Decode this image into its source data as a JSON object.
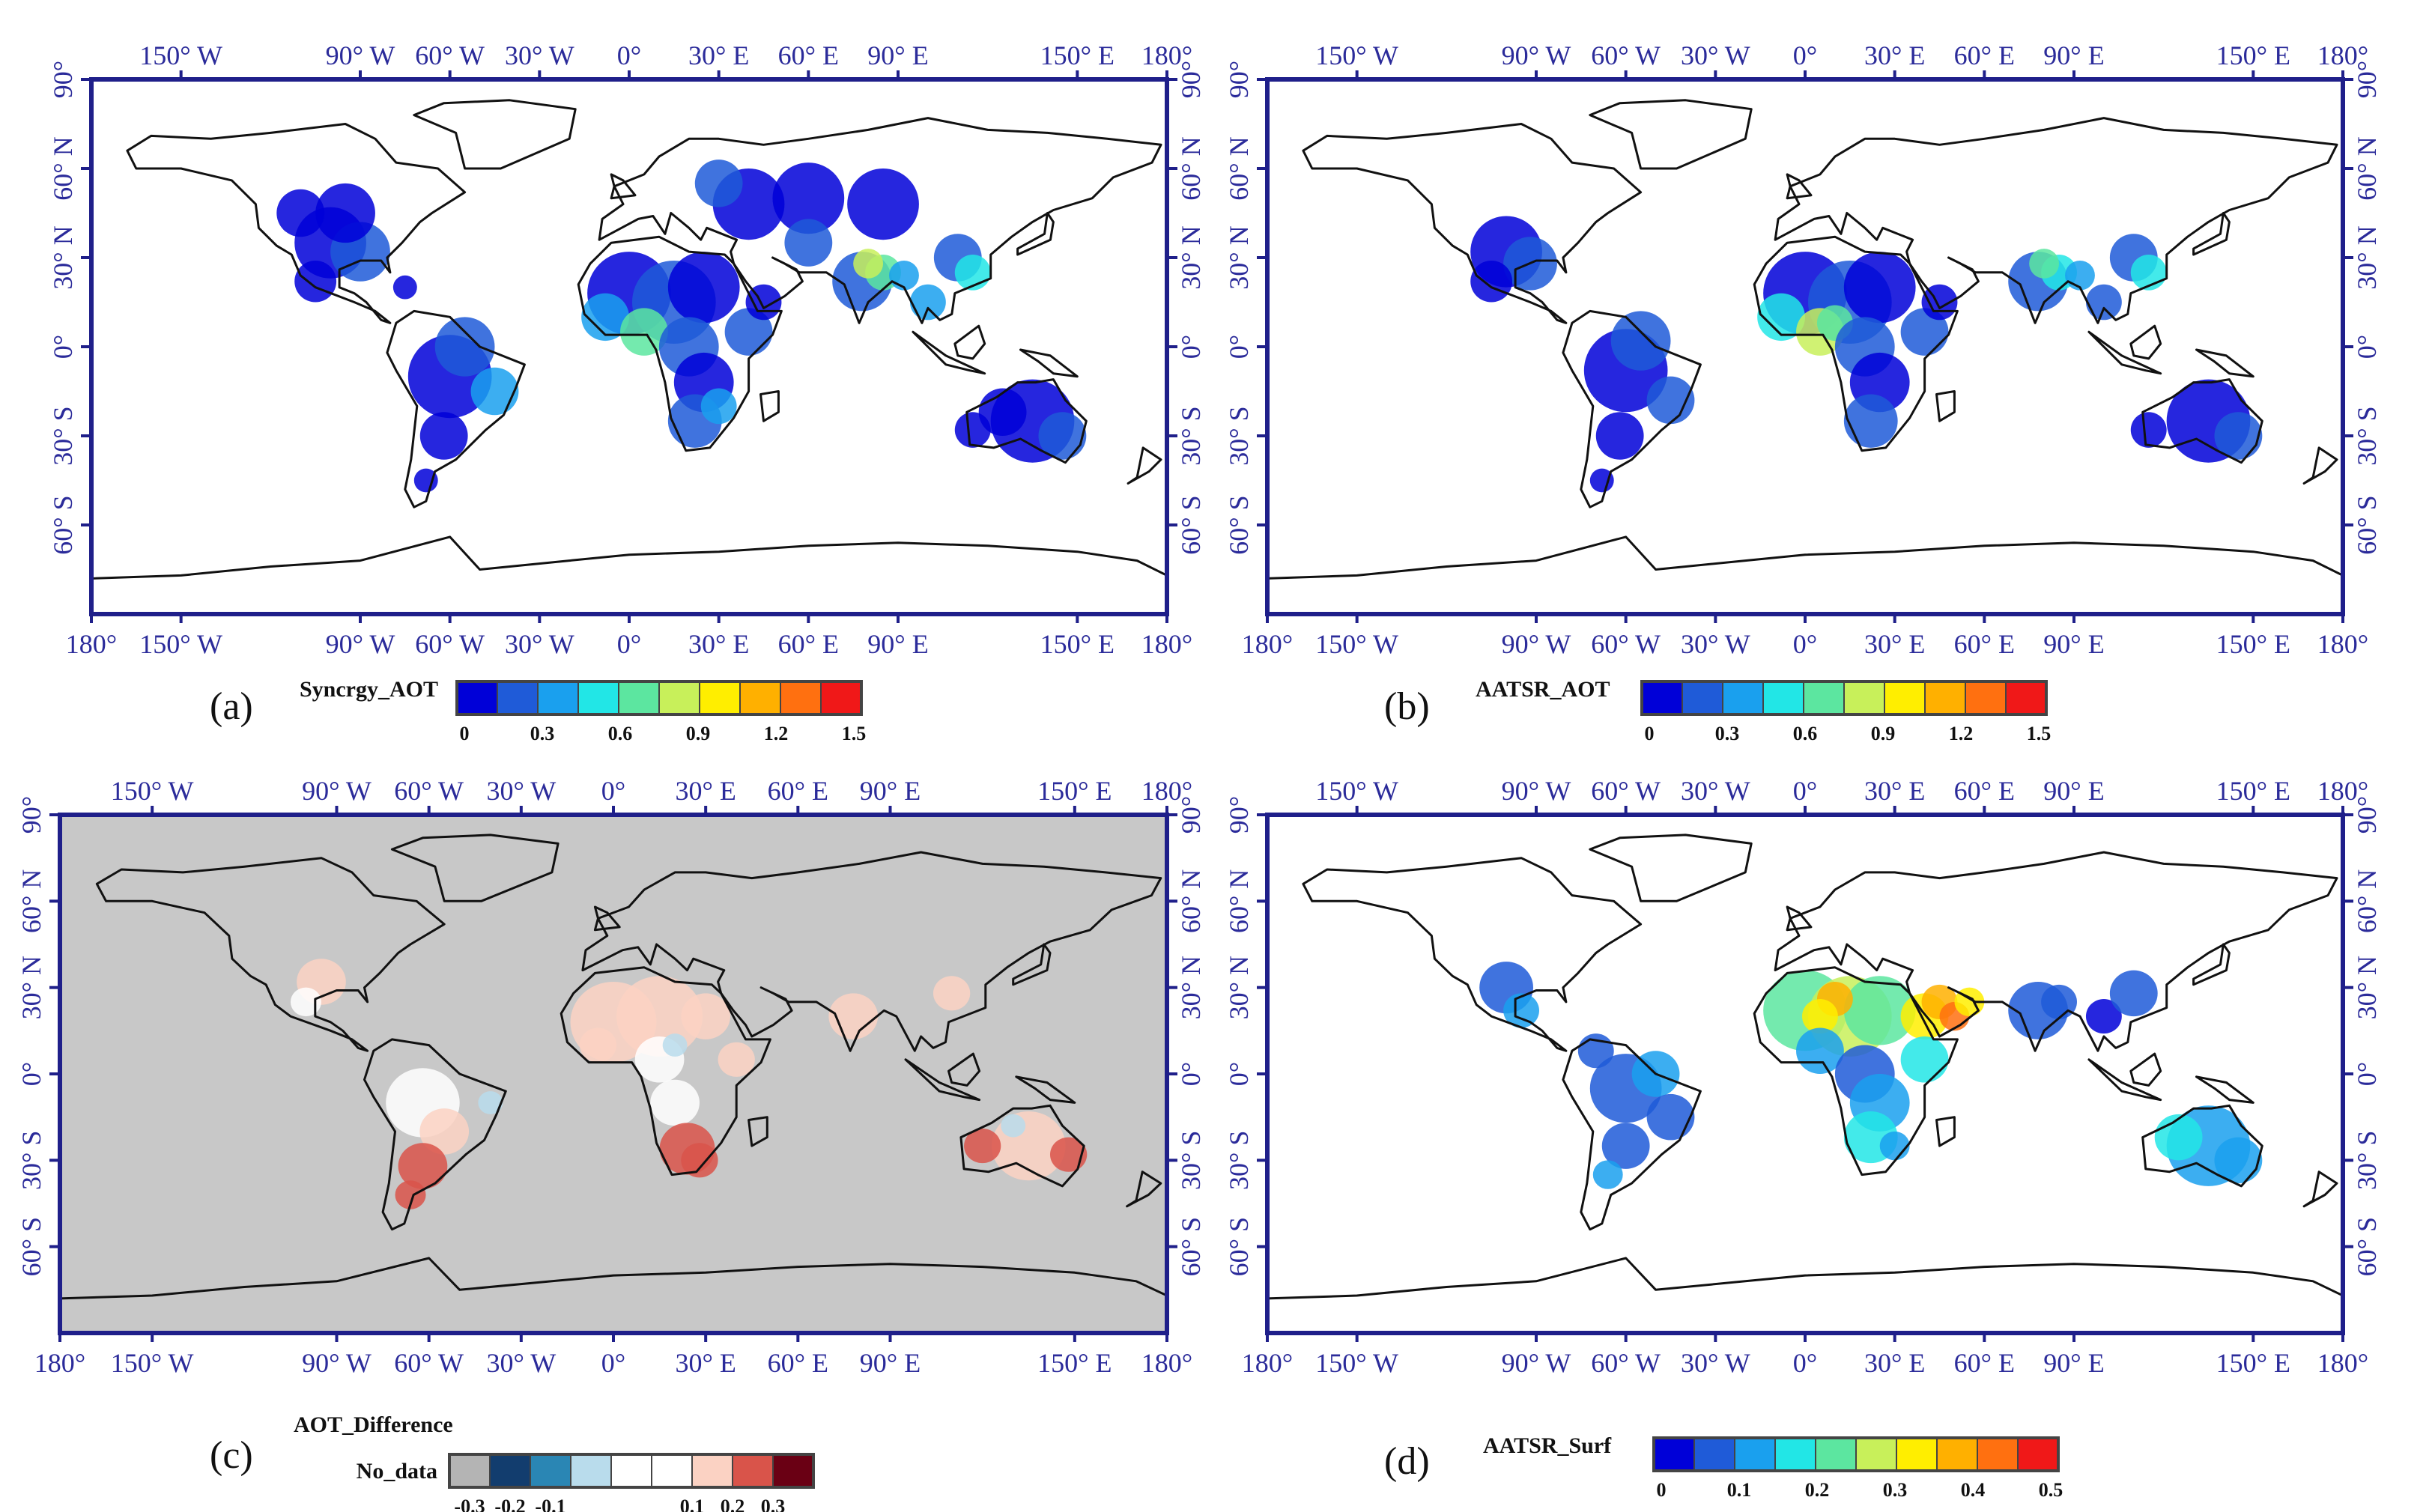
{
  "figure": {
    "panels": [
      {
        "letter": "(a)",
        "colorbar_title": "Syncrgy_AOT",
        "background": "#ffffff",
        "colormap": [
          "#0000d8",
          "#1f5bd8",
          "#1aa0ee",
          "#22e6e6",
          "#5ce6a0",
          "#c8f05a",
          "#ffee00",
          "#ffb000",
          "#ff7010",
          "#f01818"
        ],
        "colorbar_ticks": [
          "0",
          "0.3",
          "0.6",
          "0.9",
          "1.2",
          "1.5"
        ],
        "value_range": [
          0,
          1.5
        ]
      },
      {
        "letter": "(b)",
        "colorbar_title": "AATSR_AOT",
        "background": "#ffffff",
        "colormap": [
          "#0000d8",
          "#1f5bd8",
          "#1aa0ee",
          "#22e6e6",
          "#5ce6a0",
          "#c8f05a",
          "#ffee00",
          "#ffb000",
          "#ff7010",
          "#f01818"
        ],
        "colorbar_ticks": [
          "0",
          "0.3",
          "0.6",
          "0.9",
          "1.2",
          "1.5"
        ],
        "value_range": [
          0,
          1.5
        ]
      },
      {
        "letter": "(c)",
        "colorbar_title": "AOT_Difference",
        "nodata_label": "No_data",
        "background": "#c8c8c8",
        "colormap": [
          "#b4b4b4",
          "#123d6e",
          "#2a86b4",
          "#b9dcec",
          "#ffffff",
          "#ffffff",
          "#fbd2c3",
          "#d9544a",
          "#6a0014"
        ],
        "colorbar_ticks": [
          "-0.3",
          "-0.2",
          "-0.1",
          "0.1",
          "0.2",
          "0.3"
        ],
        "value_range": [
          -0.3,
          0.3
        ]
      },
      {
        "letter": "(d)",
        "colorbar_title": "AATSR_Surf",
        "background": "#ffffff",
        "colormap": [
          "#0000d8",
          "#1f5bd8",
          "#1aa0ee",
          "#22e6e6",
          "#5ce6a0",
          "#c8f05a",
          "#ffee00",
          "#ffb000",
          "#ff7010",
          "#f01818"
        ],
        "colorbar_ticks": [
          "0",
          "0.1",
          "0.2",
          "0.3",
          "0.4",
          "0.5"
        ],
        "value_range": [
          0,
          0.5
        ]
      }
    ],
    "lon_ticks_top": [
      "150° W",
      "90° W",
      "60° W",
      "30° W",
      "0°",
      "30° E",
      "60° E",
      "90° E",
      "150° E",
      "180°"
    ],
    "lon_ticks_bottom": [
      "180°",
      "150° W",
      "90° W",
      "60° W",
      "30° W",
      "0°",
      "30° E",
      "60° E",
      "90° E",
      "150° E",
      "180°"
    ],
    "lat_ticks": [
      "90°",
      "60° N",
      "30° N",
      "0°",
      "30° S",
      "60° S"
    ],
    "lon_values_top": [
      -150,
      -90,
      -60,
      -30,
      0,
      30,
      60,
      90,
      150,
      180
    ],
    "lon_values_bottom": [
      -180,
      -150,
      -90,
      -60,
      -30,
      0,
      30,
      60,
      90,
      150,
      180
    ],
    "lat_values": [
      90,
      60,
      30,
      0,
      -30,
      -60
    ],
    "lon_range": [
      -180,
      180
    ],
    "lat_range": [
      90,
      -90
    ],
    "colors": {
      "frame": "#1f1f8a",
      "tick_text": "#2b2b9a",
      "coast": "#111111"
    }
  }
}
